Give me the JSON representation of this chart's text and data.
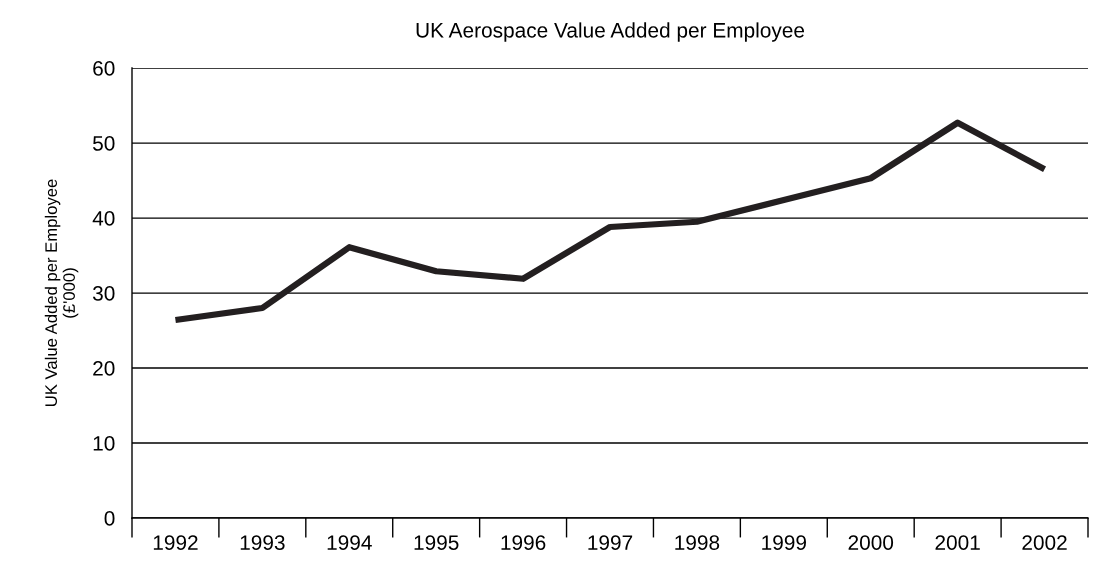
{
  "chart_data": {
    "type": "line",
    "title": "UK Aerospace Value Added per Employee",
    "ylabel": "UK Value Added per Employee\n(£'000)",
    "categories": [
      "1992",
      "1993",
      "1994",
      "1995",
      "1996",
      "1997",
      "1998",
      "1999",
      "2000",
      "2001",
      "2002"
    ],
    "series": [
      {
        "color": "#231f20",
        "values": [
          26.4,
          28,
          36.1,
          32.9,
          31.9,
          38.8,
          39.5,
          42.4,
          45.3,
          52.7,
          46.5
        ]
      }
    ],
    "ylim": [
      0,
      60
    ],
    "yticks": [
      0,
      10,
      20,
      30,
      40,
      50,
      60
    ],
    "grid": "y",
    "legend": false,
    "marker": "none",
    "line_style": "solid"
  }
}
